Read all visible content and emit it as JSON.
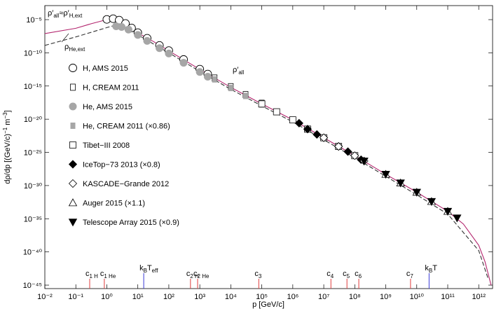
{
  "chart_data": {
    "type": "line",
    "x_label": "p [GeV/c]",
    "y_label_parts": [
      "dρ/dp [(GeV/c)",
      "−1",
      " m",
      "−3",
      "]"
    ],
    "log_x": true,
    "log_y": true,
    "xlim": [
      0.01,
      2800000000000.0
    ],
    "ylim": [
      3e-46,
      0.0013
    ],
    "xticks": [
      {
        "value": 0.01,
        "label": "10⁻²"
      },
      {
        "value": 0.1,
        "label": "10⁻¹"
      },
      {
        "value": 1,
        "label": "10⁰"
      },
      {
        "value": 10,
        "label": "10¹"
      },
      {
        "value": 100,
        "label": "10²"
      },
      {
        "value": 1000,
        "label": "10³"
      },
      {
        "value": 10000.0,
        "label": "10⁴"
      },
      {
        "value": 100000.0,
        "label": "10⁵"
      },
      {
        "value": 1000000.0,
        "label": "10⁶"
      },
      {
        "value": 10000000.0,
        "label": "10⁷"
      },
      {
        "value": 100000000.0,
        "label": "10⁸"
      },
      {
        "value": 1000000000.0,
        "label": "10⁹"
      },
      {
        "value": 10000000000.0,
        "label": "10¹⁰"
      },
      {
        "value": 100000000000.0,
        "label": "10¹¹"
      },
      {
        "value": 1000000000000.0,
        "label": "10¹²"
      }
    ],
    "yticks": [
      {
        "value": 1e-05,
        "label": "10⁻⁵"
      },
      {
        "value": 1e-10,
        "label": "10⁻¹⁰"
      },
      {
        "value": 1e-15,
        "label": "10⁻¹⁵"
      },
      {
        "value": 1e-20,
        "label": "10⁻²⁰"
      },
      {
        "value": 1e-25,
        "label": "10⁻²⁵"
      },
      {
        "value": 1e-30,
        "label": "10⁻³⁰"
      },
      {
        "value": 1e-35,
        "label": "10⁻³⁵"
      },
      {
        "value": 1e-40,
        "label": "10⁻⁴⁰"
      },
      {
        "value": 1e-45,
        "label": "10⁻⁴⁵"
      }
    ],
    "series": [
      {
        "line_style": "solid",
        "color": "#b3256e",
        "x": [
          0.01,
          0.1,
          0.32,
          1,
          1.6,
          2.5,
          4,
          6.3,
          10,
          32,
          100,
          1000,
          10000.0,
          100000.0,
          1000000.0,
          10000000.0,
          100000000.0,
          1000000000.0,
          10000000000.0,
          100000000000.0,
          320000000000.0,
          1000000000000.0,
          1600000000000.0,
          2500000000000.0
        ],
        "values": [
          7.9e-08,
          5e-07,
          2.5e-06,
          1e-05,
          1.3e-05,
          7.9e-06,
          2.5e-06,
          5e-07,
          1e-07,
          5e-09,
          2e-10,
          3.2e-13,
          6.3e-16,
          2e-18,
          7.9e-21,
          1.6e-23,
          3.2e-26,
          5e-29,
          1e-31,
          1.3e-34,
          1.6e-36,
          1e-39,
          3.2e-42,
          1e-45
        ]
      },
      {
        "line_style": "dashed",
        "color": "#333333",
        "x": [
          0.01,
          0.1,
          1,
          2,
          5,
          10,
          100,
          1000,
          10000.0,
          100000.0,
          1000000.0,
          10000000.0,
          100000000.0,
          1000000000.0,
          10000000000.0,
          100000000000.0,
          1000000000000.0,
          2000000000000.0
        ],
        "values": [
          1.3e-09,
          2.5e-08,
          6.3e-07,
          1.6e-06,
          1e-06,
          5e-08,
          1e-10,
          1.6e-13,
          3.2e-16,
          1e-18,
          4e-21,
          7.9e-24,
          1.6e-26,
          2.5e-29,
          4e-32,
          5e-35,
          1.6e-40,
          1e-44
        ]
      },
      {
        "name": "H, AMS 2015",
        "marker": "circle-open",
        "color": "#000000",
        "x": [
          1,
          1.6,
          2.5,
          4,
          6.3,
          10,
          20,
          50,
          100,
          300,
          1000,
          1800
        ],
        "values": [
          1.1e-05,
          1.4e-05,
          8.5e-06,
          2.7e-06,
          5.5e-07,
          1.1e-07,
          1.6e-08,
          1.3e-09,
          2.2e-10,
          1e-11,
          3.5e-13,
          6.3e-14
        ]
      },
      {
        "name": "H, CREAM 2011",
        "marker": "rect-open",
        "color": "#000000",
        "x": [
          3000,
          10000.0,
          30000.0,
          100000.0
        ],
        "values": [
          1.6e-14,
          7.9e-16,
          5e-17,
          2.5e-18
        ]
      },
      {
        "name": "He, AMS 2015",
        "marker": "circle-filled",
        "color": "#a6a6a6",
        "x": [
          2,
          3,
          5,
          10,
          20,
          50,
          100,
          300,
          1000,
          1800
        ],
        "values": [
          1e-06,
          7.9e-07,
          3.2e-07,
          5e-08,
          6.3e-09,
          5e-10,
          7.9e-11,
          3.2e-12,
          1.3e-13,
          2.5e-14
        ]
      },
      {
        "name": "He, CREAM 2011 (×0.86)",
        "marker": "rect-filled",
        "color": "#a6a6a6",
        "x": [
          3000,
          10000.0,
          30000.0,
          100000.0
        ],
        "values": [
          1e-14,
          5e-16,
          3.2e-17,
          1.6e-18
        ]
      },
      {
        "name": "Tibet−III 2008",
        "marker": "square-open",
        "color": "#000000",
        "x": [
          100000.0,
          300000.0,
          1000000.0,
          3000000.0,
          10000000.0,
          30000000.0,
          100000000.0
        ],
        "values": [
          2e-18,
          1.3e-19,
          7.9e-21,
          3.2e-22,
          1.6e-23,
          7.9e-25,
          3.2e-26
        ]
      },
      {
        "name": "IceTop−73 2013 (×0.8)",
        "marker": "diamond-filled",
        "color": "#000000",
        "x": [
          1600000.0,
          3000000.0,
          6000000.0,
          10000000.0,
          30000000.0,
          60000000.0,
          160000000.0
        ],
        "values": [
          2.5e-21,
          3.2e-22,
          5e-23,
          1.6e-23,
          7.9e-25,
          1.3e-25,
          7.9e-27
        ]
      },
      {
        "name": "KASCADE−Grande 2012",
        "marker": "diamond-open",
        "color": "#000000",
        "x": [
          10000000.0,
          30000000.0,
          100000000.0,
          200000000.0
        ],
        "values": [
          1.6e-23,
          7.9e-25,
          3.2e-26,
          5e-27
        ]
      },
      {
        "name": "Auger 2015 (×1.1)",
        "marker": "triangle-open",
        "color": "#000000",
        "x": [
          1000000000.0,
          3000000000.0,
          10000000000.0,
          30000000000.0,
          100000000000.0
        ],
        "values": [
          5e-29,
          2.5e-30,
          1e-31,
          4e-33,
          1.3e-34
        ]
      },
      {
        "name": "Telescope Array 2015 (×0.9)",
        "marker": "triangle-down-filled",
        "color": "#000000",
        "x": [
          200000000.0,
          1000000000.0,
          3000000000.0,
          10000000000.0,
          30000000000.0,
          100000000000.0,
          200000000000.0
        ],
        "values": [
          5e-27,
          5e-29,
          2.5e-30,
          1e-31,
          4e-33,
          1.3e-34,
          1.3e-35
        ]
      }
    ],
    "annotations": [
      {
        "parts": [
          "ρ′",
          "all",
          "≈ρ′",
          "H,ext"
        ]
      },
      {
        "parts": [
          "ρ",
          "He,ext"
        ]
      },
      {
        "parts": [
          "ρ′",
          "all"
        ]
      }
    ],
    "markers": [
      {
        "parts": [
          "c",
          "1 H"
        ],
        "x": 0.28,
        "color": "#e03c3c"
      },
      {
        "parts": [
          "c",
          "1 He"
        ],
        "x": 0.83,
        "color": "#e03c3c"
      },
      {
        "parts": [
          "k",
          "B",
          "T",
          "eff"
        ],
        "x": 15.5,
        "color": "#3a3ad6"
      },
      {
        "parts": [
          "c",
          "2 H"
        ],
        "x": 500,
        "color": "#e03c3c"
      },
      {
        "parts": [
          "c",
          "2 He"
        ],
        "x": 850,
        "color": "#e03c3c"
      },
      {
        "parts": [
          "c",
          "3"
        ],
        "x": 80000,
        "color": "#e03c3c"
      },
      {
        "parts": [
          "c",
          "4"
        ],
        "x": 17000000.0,
        "color": "#e03c3c"
      },
      {
        "parts": [
          "c",
          "5"
        ],
        "x": 56000000.0,
        "color": "#e03c3c"
      },
      {
        "parts": [
          "c",
          "6"
        ],
        "x": 135000000.0,
        "color": "#e03c3c"
      },
      {
        "parts": [
          "c",
          "7"
        ],
        "x": 6300000000.0,
        "color": "#e03c3c"
      },
      {
        "parts": [
          "k",
          "B",
          "T"
        ],
        "x": 25000000000.0,
        "color": "#3a3ad6"
      }
    ]
  }
}
